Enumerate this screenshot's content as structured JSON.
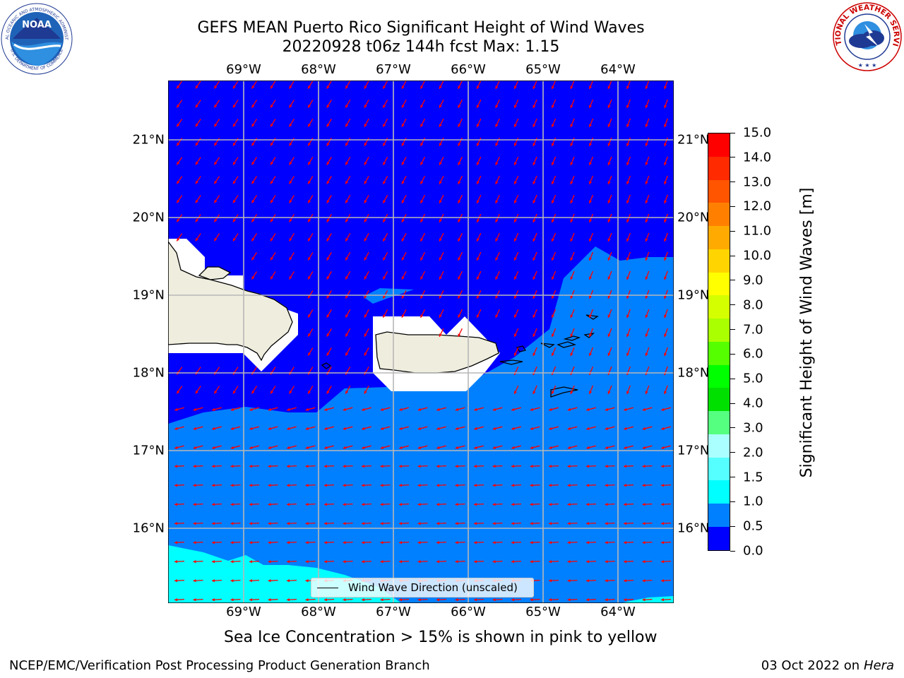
{
  "title_line1": "GEFS MEAN Puerto Rico Significant Height of Wind Waves",
  "title_line2": "20220928 t06z 144h fcst   Max: 1.15",
  "lon_labels": [
    "69°W",
    "68°W",
    "67°W",
    "66°W",
    "65°W",
    "64°W"
  ],
  "lat_labels": [
    "21°N",
    "20°N",
    "19°N",
    "18°N",
    "17°N",
    "16°N"
  ],
  "colorbar": {
    "label": "Significant Height of Wind Waves [m]",
    "ticks": [
      "15.0",
      "14.0",
      "13.0",
      "12.0",
      "11.0",
      "10.0",
      "9.0",
      "8.0",
      "7.0",
      "6.0",
      "5.0",
      "4.0",
      "3.0",
      "2.0",
      "1.5",
      "1.0",
      "0.5",
      "0.0"
    ],
    "colors": [
      "#ff0000",
      "#ff2a00",
      "#ff5500",
      "#ff8000",
      "#ffaa00",
      "#ffd400",
      "#ffff00",
      "#d4ff00",
      "#aaff00",
      "#55ff00",
      "#00ff00",
      "#00e000",
      "#55ff80",
      "#aaffff",
      "#55ffff",
      "#00ffff",
      "#0080ff",
      "#0000ff"
    ]
  },
  "map_colors": {
    "band_0_05": "#0000ff",
    "band_05_10": "#0080ff",
    "band_10_15": "#00ffff",
    "land": "#efedde",
    "arrow": "#ff0000"
  },
  "legend_text": "Wind Wave Direction (unscaled)",
  "footnote": "Sea Ice Concentration > 15% is shown in pink to yellow",
  "footer_left": "NCEP/EMC/Verification Post Processing Product Generation Branch",
  "footer_right_date": "03 Oct 2022 on ",
  "footer_right_host": "Hera",
  "noaa_logo_text": "NOAA",
  "noaa_ring_top": "NATIONAL OCEANIC AND ATMOSPHERIC ADMINISTRATION",
  "noaa_ring_bottom": "U.S. DEPARTMENT OF COMMERCE",
  "nws_ring_text": "NATIONAL WEATHER SERVICE"
}
